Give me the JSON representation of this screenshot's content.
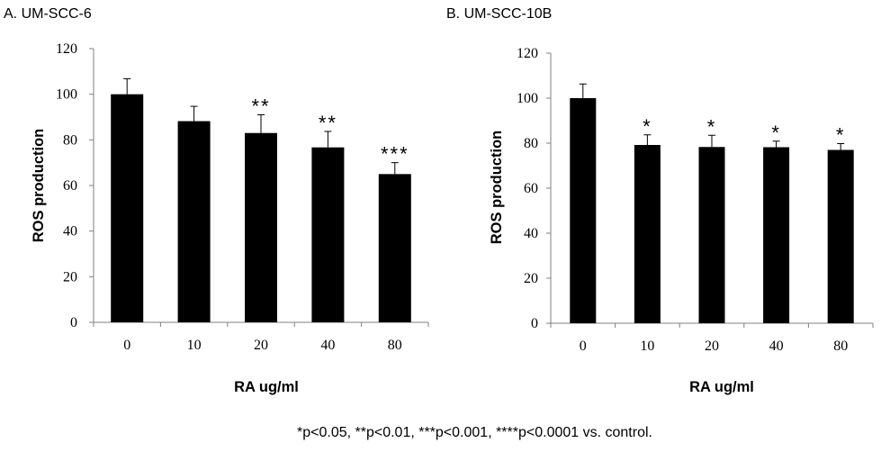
{
  "colors": {
    "bar": "#000000",
    "axis": "#808080",
    "text": "#000000"
  },
  "footnote": "*p<0.05, **p<0.01, ***p<0.001, ****p<0.0001 vs. control.",
  "chart_data": [
    {
      "type": "bar",
      "title": "A.  UM-SCC-6",
      "xlabel": "RA ug/ml",
      "ylabel": "ROS production",
      "categories": [
        "0",
        "10",
        "20",
        "40",
        "80"
      ],
      "values": [
        100,
        88.2,
        83,
        76.7,
        65
      ],
      "error": [
        6.8,
        6.5,
        8,
        7,
        5
      ],
      "significance": [
        "",
        "",
        "**",
        "**",
        "***"
      ],
      "ylim": [
        0,
        120
      ],
      "yticks": [
        0,
        20,
        40,
        60,
        80,
        100,
        120
      ],
      "grid": false,
      "legend": "none"
    },
    {
      "type": "bar",
      "title": "B. UM-SCC-10B",
      "xlabel": "RA ug/ml",
      "ylabel": "ROS production",
      "categories": [
        "0",
        "10",
        "20",
        "40",
        "80"
      ],
      "values": [
        100,
        79.2,
        78.3,
        78.2,
        77
      ],
      "error": [
        6.3,
        4.5,
        5.2,
        2.7,
        2.8
      ],
      "significance": [
        "",
        "*",
        "*",
        "*",
        "*"
      ],
      "ylim": [
        0,
        120
      ],
      "yticks": [
        0,
        20,
        40,
        60,
        80,
        100,
        120
      ],
      "grid": false,
      "legend": "none"
    }
  ]
}
